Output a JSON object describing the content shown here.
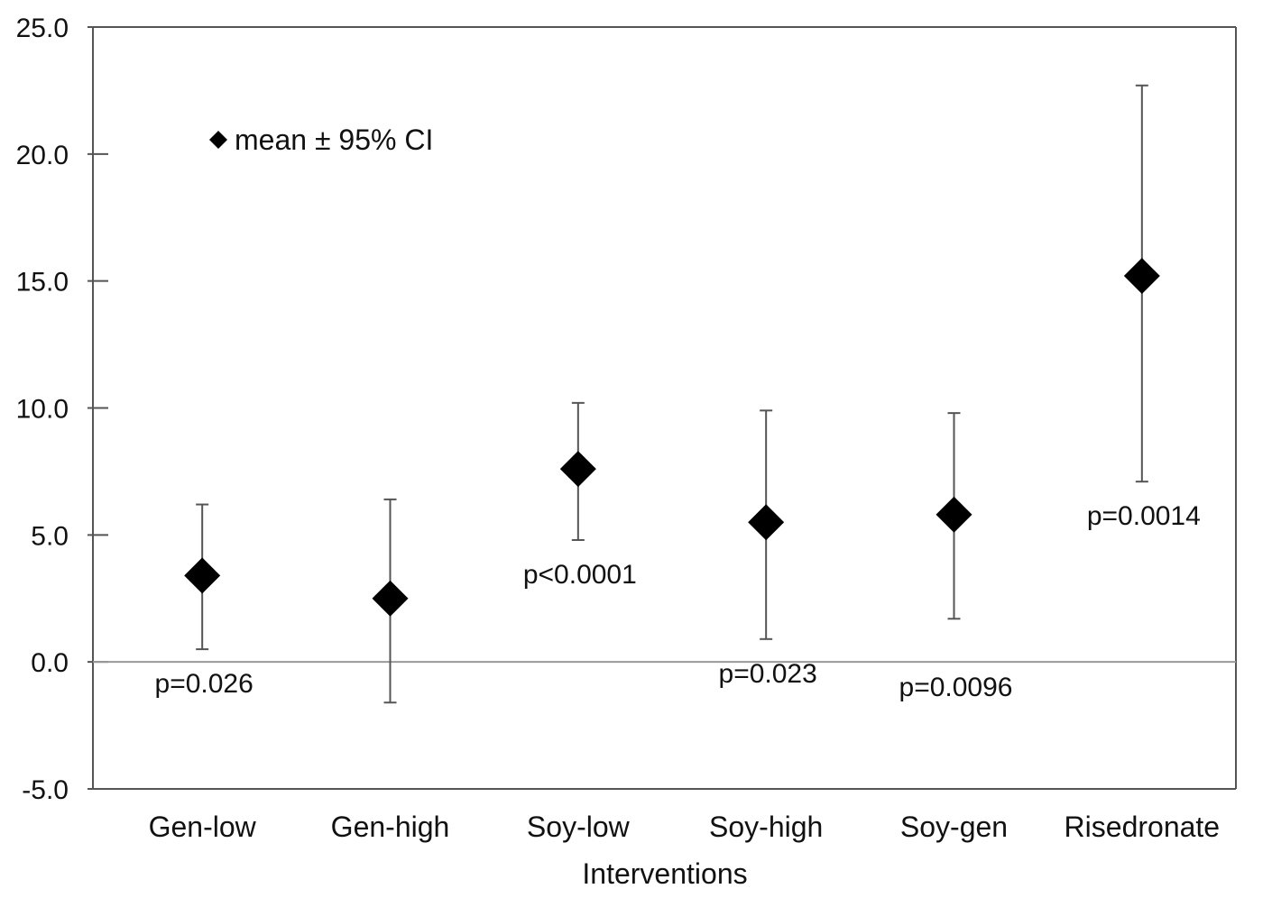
{
  "chart_data": {
    "type": "scatter",
    "title": "",
    "xlabel": "Interventions",
    "ylabel": "",
    "ylim": [
      -5,
      25
    ],
    "yticks": [
      25,
      20,
      15,
      10,
      5,
      0,
      -5
    ],
    "ytick_labels": [
      "25.0",
      "20.0",
      "15.0",
      "10.0",
      "5.0",
      "0.0",
      "-5.0"
    ],
    "grid": false,
    "legend": {
      "label": "mean ± 95% CI",
      "placement": "top-left"
    },
    "categories": [
      "Gen-low",
      "Gen-high",
      "Soy-low",
      "Soy-high",
      "Soy-gen",
      "Risedronate"
    ],
    "series": [
      {
        "name": "mean ± 95% CI",
        "marker": "diamond",
        "values": [
          3.4,
          2.5,
          7.6,
          5.5,
          5.8,
          15.2
        ],
        "ci_low": [
          0.5,
          -1.6,
          4.8,
          0.9,
          1.7,
          7.1
        ],
        "ci_high": [
          6.2,
          6.4,
          10.2,
          9.9,
          9.8,
          22.7
        ]
      }
    ],
    "annotations": [
      {
        "category": "Gen-low",
        "text": "p=0.026",
        "position": "below"
      },
      {
        "category": "Soy-low",
        "text": "p<0.0001",
        "position": "below"
      },
      {
        "category": "Soy-high",
        "text": "p=0.023",
        "position": "below"
      },
      {
        "category": "Soy-gen",
        "text": "p=0.0096",
        "position": "below"
      },
      {
        "category": "Risedronate",
        "text": "p=0.0014",
        "position": "below"
      }
    ],
    "colors": {
      "marker": "#000000",
      "errorbar": "#555555",
      "frame": "#555555",
      "zeroline": "#999999"
    }
  }
}
